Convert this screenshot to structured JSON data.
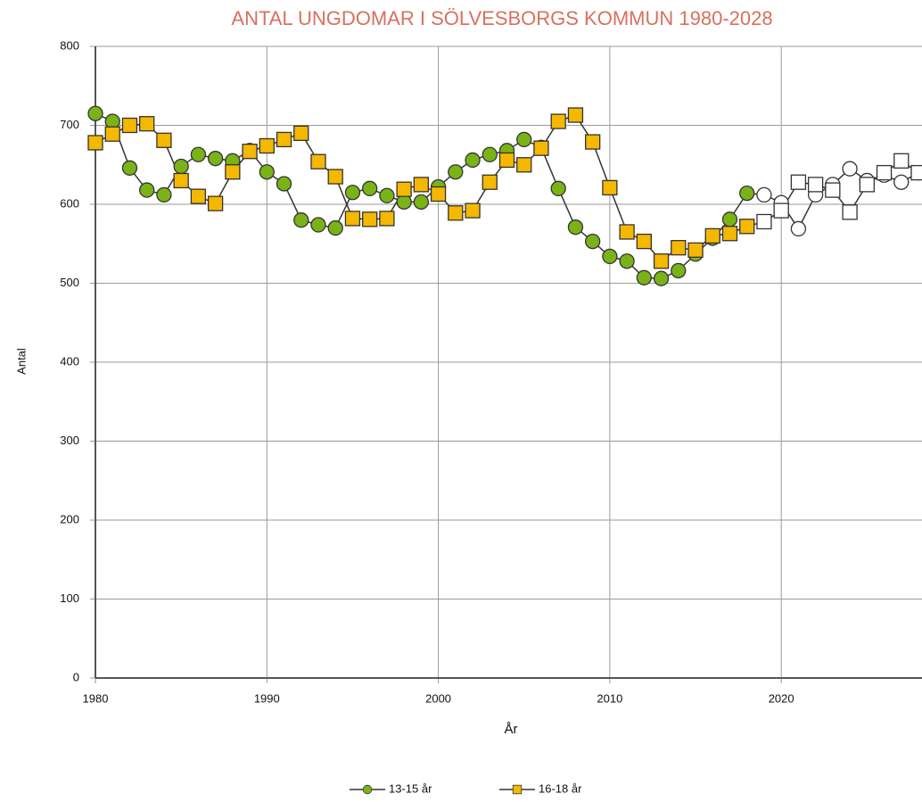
{
  "chart_data": {
    "type": "line",
    "title": "ANTAL UNGDOMAR I SÖLVESBORGS KOMMUN 1980-2028",
    "x_label": "År",
    "y_label": "Antal",
    "x": [
      1980,
      1981,
      1982,
      1983,
      1984,
      1985,
      1986,
      1987,
      1988,
      1989,
      1990,
      1991,
      1992,
      1993,
      1994,
      1995,
      1996,
      1997,
      1998,
      1999,
      2000,
      2001,
      2002,
      2003,
      2004,
      2005,
      2006,
      2007,
      2008,
      2009,
      2010,
      2011,
      2012,
      2013,
      2014,
      2015,
      2016,
      2017,
      2018,
      2019,
      2020,
      2021,
      2022,
      2023,
      2024,
      2025,
      2026,
      2027,
      2028
    ],
    "series": [
      {
        "name": "13-15 år",
        "color": "#7ab317",
        "marker": "circle",
        "values": [
          715,
          705,
          646,
          618,
          612,
          648,
          663,
          658,
          655,
          668,
          641,
          626,
          580,
          574,
          570,
          615,
          620,
          611,
          603,
          603,
          622,
          641,
          656,
          663,
          668,
          682,
          672,
          620,
          571,
          553,
          534,
          528,
          507,
          506,
          516,
          537,
          557,
          581,
          614,
          612,
          602,
          569,
          612,
          625,
          645,
          630,
          637,
          628,
          640
        ]
      },
      {
        "name": "16-18 år",
        "color": "#f5b800",
        "marker": "square",
        "values": [
          678,
          689,
          700,
          702,
          681,
          630,
          610,
          601,
          641,
          667,
          674,
          682,
          690,
          654,
          635,
          582,
          581,
          582,
          619,
          625,
          613,
          589,
          592,
          628,
          656,
          650,
          671,
          705,
          713,
          679,
          621,
          565,
          553,
          528,
          545,
          542,
          560,
          563,
          572,
          578,
          592,
          628,
          625,
          618,
          590,
          625,
          640,
          655,
          640
        ]
      }
    ],
    "open_markers_from": 2019,
    "xlim": [
      1980,
      2028
    ],
    "xticks": [
      1980,
      1990,
      2000,
      2010,
      2020
    ],
    "ylim": [
      0,
      800
    ],
    "yticks": [
      0,
      100,
      200,
      300,
      400,
      500,
      600,
      700,
      800
    ],
    "grid": true,
    "legend": "bottom"
  }
}
